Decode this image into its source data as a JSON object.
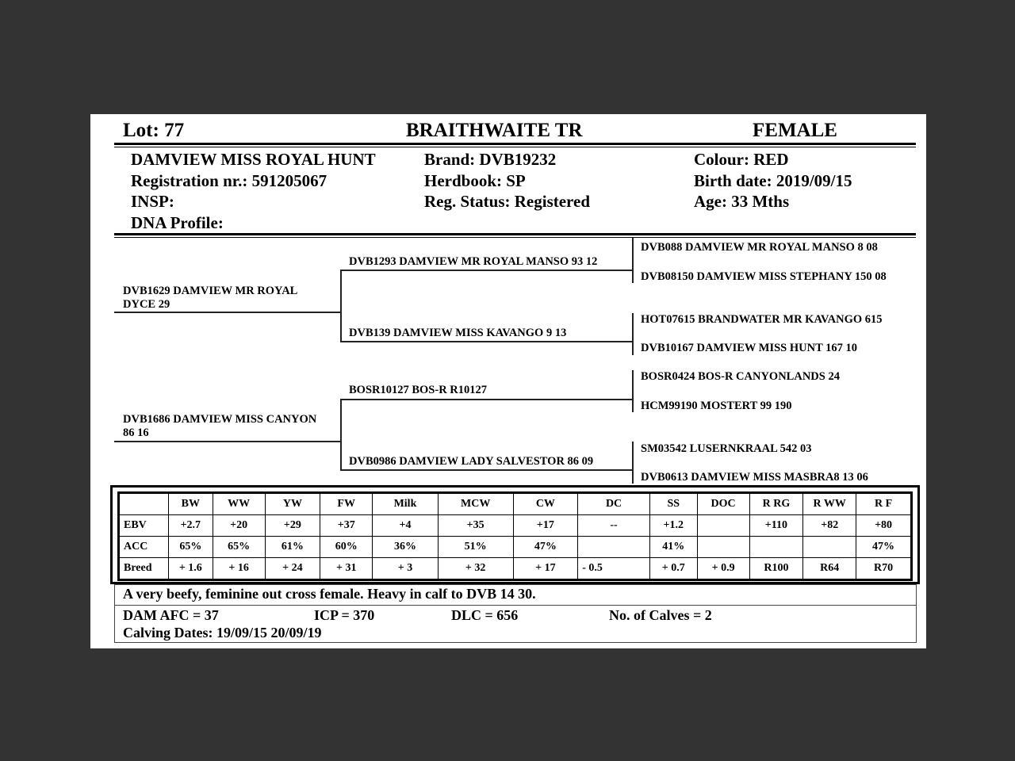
{
  "header": {
    "lot": "Lot:  77",
    "owner": "BRAITHWAITE TR",
    "sex": "FEMALE"
  },
  "animal": {
    "name": "DAMVIEW MISS ROYAL HUNT",
    "registration": "Registration nr.: 591205067",
    "insp": "INSP:",
    "dna": "DNA Profile:",
    "brand": "Brand:  DVB19232",
    "herdbook": "Herdbook: SP",
    "reg_status": "Reg. Status: Registered",
    "colour": "Colour:  RED",
    "birth_date": "Birth date:  2019/09/15",
    "age": "Age: 33 Mths"
  },
  "pedigree": {
    "sire": [
      "DVB1629 DAMVIEW MR ROYAL",
      "DYCE 29"
    ],
    "dam": [
      "DVB1686 DAMVIEW MISS CANYON",
      "86 16"
    ],
    "grandparents": [
      "DVB1293 DAMVIEW MR ROYAL MANSO 93 12",
      "DVB139 DAMVIEW MISS KAVANGO 9 13",
      "BOSR10127 BOS-R R10127",
      "DVB0986 DAMVIEW LADY SALVESTOR 86 09"
    ],
    "great_grandparents": [
      "DVB088 DAMVIEW MR ROYAL MANSO 8 08",
      "DVB08150 DAMVIEW MISS STEPHANY 150 08",
      "HOT07615 BRANDWATER MR KAVANGO 615",
      "DVB10167 DAMVIEW MISS HUNT 167 10",
      "BOSR0424 BOS-R CANYONLANDS 24",
      "HCM99190 MOSTERT 99 190",
      "SM03542 LUSERNKRAAL 542 03",
      "DVB0613 DAMVIEW MISS MASBRA8 13 06"
    ]
  },
  "ebv_table": {
    "headers": [
      "",
      "BW",
      "WW",
      "YW",
      "FW",
      "Milk",
      "MCW",
      "CW",
      "DC",
      "SS",
      "DOC",
      "R RG",
      "R WW",
      "R F"
    ],
    "rows": [
      [
        "EBV",
        "+2.7",
        "+20",
        "+29",
        "+37",
        "+4",
        "+35",
        "+17",
        "--",
        "+1.2",
        "",
        "+110",
        "+82",
        "+80"
      ],
      [
        "ACC",
        "65%",
        "65%",
        "61%",
        "60%",
        "36%",
        "51%",
        "47%",
        "",
        "41%",
        "",
        "",
        "",
        "47%"
      ],
      [
        "Breed",
        "+ 1.6",
        "+ 16",
        "+ 24",
        "+ 31",
        "+ 3",
        "+ 32",
        "+ 17",
        "- 0.5",
        "+ 0.7",
        "+ 0.9",
        "R100",
        "R64",
        "R70"
      ]
    ]
  },
  "comments": {
    "remark": "A very beefy, feminine out cross female. Heavy in calf to DVB 14 30.",
    "dam_afc": "DAM AFC = 37",
    "icp": "ICP = 370",
    "dlc": "DLC = 656",
    "calves": "No. of Calves = 2",
    "calving_dates": "Calving Dates: 19/09/15  20/09/19"
  }
}
